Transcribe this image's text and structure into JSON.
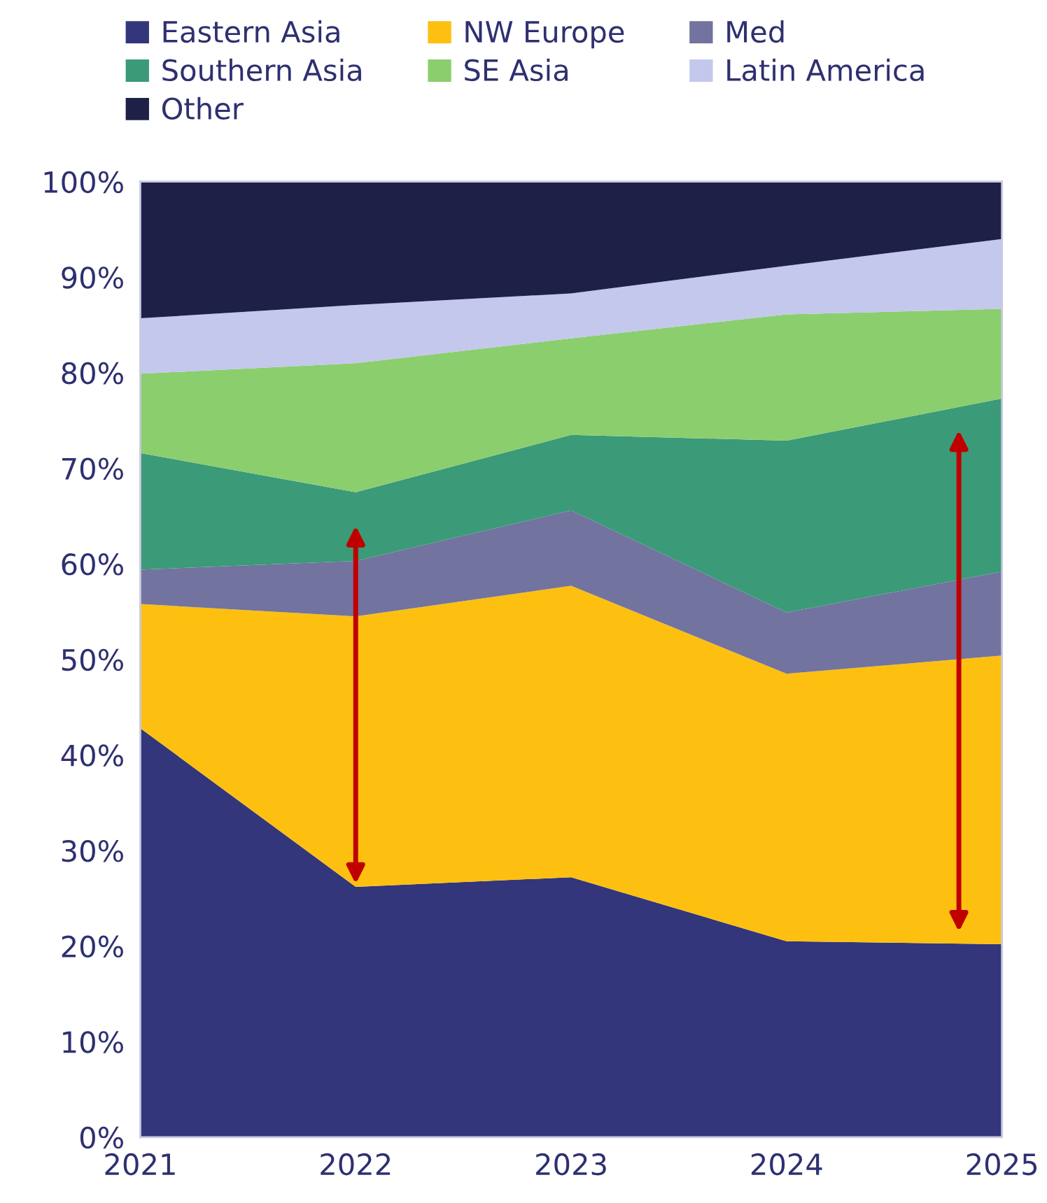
{
  "chart_data": {
    "type": "area",
    "stacked": true,
    "categories": [
      "2021",
      "2022",
      "2023",
      "2024",
      "2025"
    ],
    "series": [
      {
        "name": "Eastern Asia",
        "color": "#33367a",
        "values": [
          42.8,
          26.2,
          27.2,
          20.5,
          20.2
        ]
      },
      {
        "name": "NW Europe",
        "color": "#fdc010",
        "values": [
          13.0,
          28.3,
          30.5,
          28.0,
          30.2
        ]
      },
      {
        "name": "Med",
        "color": "#72739f",
        "values": [
          3.6,
          5.8,
          7.9,
          6.4,
          8.8
        ]
      },
      {
        "name": "Southern Asia",
        "color": "#3b9a78",
        "values": [
          12.2,
          7.2,
          7.9,
          18.0,
          18.1
        ]
      },
      {
        "name": "SE Asia",
        "color": "#8bce6e",
        "values": [
          8.3,
          13.5,
          10.1,
          13.2,
          9.4
        ]
      },
      {
        "name": "Latin America",
        "color": "#c3c8ec",
        "values": [
          5.8,
          6.1,
          4.7,
          5.1,
          7.3
        ]
      },
      {
        "name": "Other",
        "color": "#1f2048",
        "values": [
          14.3,
          12.9,
          11.7,
          8.8,
          6.0
        ]
      }
    ],
    "ylim": [
      0,
      100
    ],
    "yticks": [
      {
        "value": 0,
        "label": "0%"
      },
      {
        "value": 10,
        "label": "10%"
      },
      {
        "value": 20,
        "label": "20%"
      },
      {
        "value": 30,
        "label": "30%"
      },
      {
        "value": 40,
        "label": "40%"
      },
      {
        "value": 50,
        "label": "50%"
      },
      {
        "value": 60,
        "label": "60%"
      },
      {
        "value": 70,
        "label": "70%"
      },
      {
        "value": 80,
        "label": "80%"
      },
      {
        "value": 90,
        "label": "90%"
      },
      {
        "value": 100,
        "label": "100%"
      }
    ],
    "grid": false,
    "legend": "top"
  }
}
